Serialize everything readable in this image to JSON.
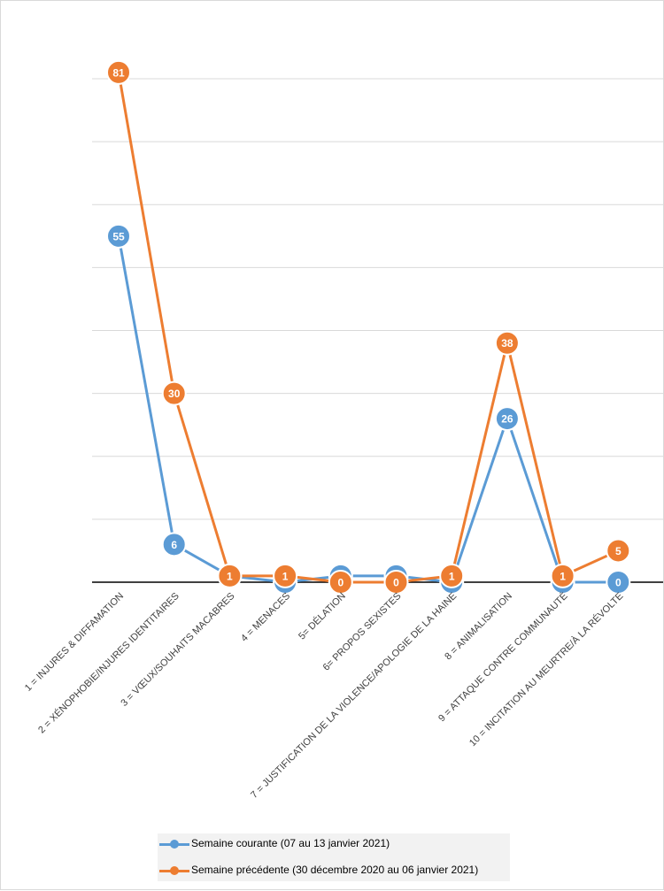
{
  "chart_data": {
    "type": "line",
    "title": "",
    "xlabel": "",
    "ylabel": "",
    "ylim": [
      0,
      80
    ],
    "grid": true,
    "legend_position": "bottom",
    "categories": [
      "1 = INJURES & DIFFAMATION",
      "2 = XÉNOPHOBIE/INJURES IDENTITAIRES",
      "3 = VŒUX/SOUHAITS MACABRES",
      "4 = MENACES",
      "5= DÉLATION",
      "6= PROPOS SEXISTES",
      "7 = JUSTIFICATION DE LA VIOLENCE/APOLOGIE DE LA HAINE",
      "8 = ANIMALISATION",
      "9 = ATTAQUE CONTRE COMMUNAUTÉ",
      "10 = INCITATION AU MEURTRE/À LA RÉVOLTE"
    ],
    "series": [
      {
        "name": "Semaine courante (07 au 13 janvier 2021)",
        "color": "#5b9bd5",
        "values": [
          55,
          6,
          1,
          0,
          1,
          1,
          0,
          26,
          0,
          0
        ]
      },
      {
        "name": "Semaine précédente (30 décembre 2020 au 06 janvier 2021)",
        "color": "#ed7d31",
        "values": [
          81,
          30,
          1,
          1,
          0,
          0,
          1,
          38,
          1,
          5
        ]
      }
    ]
  }
}
